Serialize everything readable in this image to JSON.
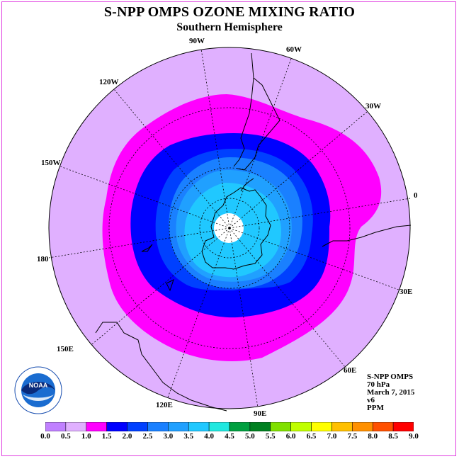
{
  "title": "S-NPP OMPS OZONE MIXING RATIO",
  "subtitle": "Southern Hemisphere",
  "longitude_labels": [
    {
      "label": "90W",
      "pos": [
        279,
        60
      ]
    },
    {
      "label": "60W",
      "pos": [
        415,
        72
      ]
    },
    {
      "label": "30W",
      "pos": [
        527,
        152
      ]
    },
    {
      "label": "0",
      "pos": [
        587,
        278
      ]
    },
    {
      "label": "30E",
      "pos": [
        573,
        414
      ]
    },
    {
      "label": "60E",
      "pos": [
        494,
        524
      ]
    },
    {
      "label": "90E",
      "pos": [
        368,
        585
      ]
    },
    {
      "label": "120E",
      "pos": [
        232,
        575
      ]
    },
    {
      "label": "150E",
      "pos": [
        92,
        495
      ]
    },
    {
      "label": "180",
      "pos": [
        60,
        368
      ]
    },
    {
      "label": "150W",
      "pos": [
        72,
        232
      ]
    },
    {
      "label": "120W",
      "pos": [
        153,
        118
      ]
    }
  ],
  "info": {
    "line1": "S-NPP OMPS",
    "line2": "70 hPa",
    "line3": "March 7, 2015",
    "line4": "v6",
    "line5": "PPM"
  },
  "logo_text": "NOAA",
  "colorbar": {
    "ticks": [
      "0.0",
      "0.5",
      "1.0",
      "1.5",
      "2.0",
      "2.5",
      "3.0",
      "3.5",
      "4.0",
      "4.5",
      "5.0",
      "5.5",
      "6.0",
      "6.5",
      "7.0",
      "7.5",
      "8.0",
      "8.5",
      "9.0"
    ],
    "colors": [
      "#c080ff",
      "#e0b0ff",
      "#ff00ff",
      "#0000ff",
      "#0040ff",
      "#1a80ff",
      "#20a0ff",
      "#20c8ff",
      "#20e8e0",
      "#00a040",
      "#008020",
      "#80e000",
      "#c0ff00",
      "#ffff00",
      "#ffc000",
      "#ff9000",
      "#ff5000",
      "#ff0000",
      "#806040"
    ]
  },
  "map_colors": {
    "disk": "#e0b0ff",
    "band_1_0": "#ff00ff",
    "band_1_5": "#0000ff",
    "band_2_0": "#0040ff",
    "band_2_5": "#1a80ff",
    "band_3_0": "#20a0ff",
    "band_3_5": "#20c8ff",
    "band_4_0": "#20e8e0",
    "polar_night": "#ffffff"
  }
}
